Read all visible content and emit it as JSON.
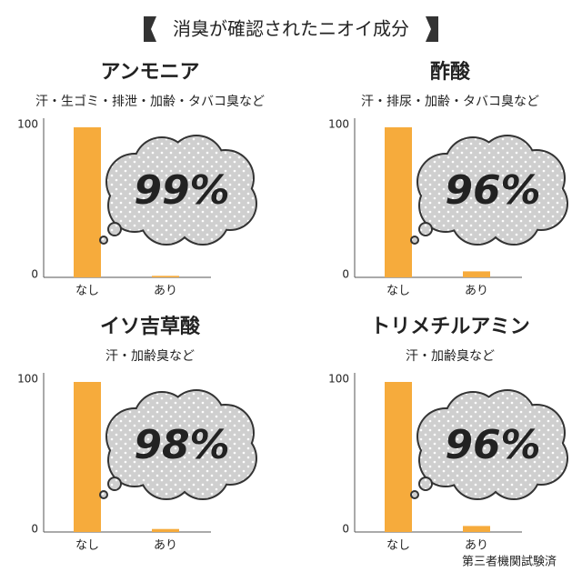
{
  "title": "消臭が確認されたニオイ成分",
  "footnote": "第三者機関試験済",
  "chart_data": [
    {
      "type": "bar",
      "title": "アンモニア",
      "subtitle": "汗・生ゴミ・排泄・加齢・タバコ臭など",
      "annotation": "99%",
      "categories": [
        "なし",
        "あり"
      ],
      "values": [
        100,
        1
      ],
      "color": "#f6ab3c",
      "ylim": [
        0,
        100
      ],
      "yticks": [
        0,
        100
      ]
    },
    {
      "type": "bar",
      "title": "酢酸",
      "subtitle": "汗・排尿・加齢・タバコ臭など",
      "annotation": "96%",
      "categories": [
        "なし",
        "あり"
      ],
      "values": [
        100,
        4
      ],
      "color": "#f6ab3c",
      "ylim": [
        0,
        100
      ],
      "yticks": [
        0,
        100
      ]
    },
    {
      "type": "bar",
      "title": "イソ吉草酸",
      "subtitle": "汗・加齢臭など",
      "annotation": "98%",
      "categories": [
        "なし",
        "あり"
      ],
      "values": [
        100,
        2
      ],
      "color": "#f6ab3c",
      "ylim": [
        0,
        100
      ],
      "yticks": [
        0,
        100
      ]
    },
    {
      "type": "bar",
      "title": "トリメチルアミン",
      "subtitle": "汗・加齢臭など",
      "annotation": "96%",
      "categories": [
        "なし",
        "あり"
      ],
      "values": [
        100,
        4
      ],
      "color": "#f6ab3c",
      "ylim": [
        0,
        100
      ],
      "yticks": [
        0,
        100
      ]
    }
  ]
}
